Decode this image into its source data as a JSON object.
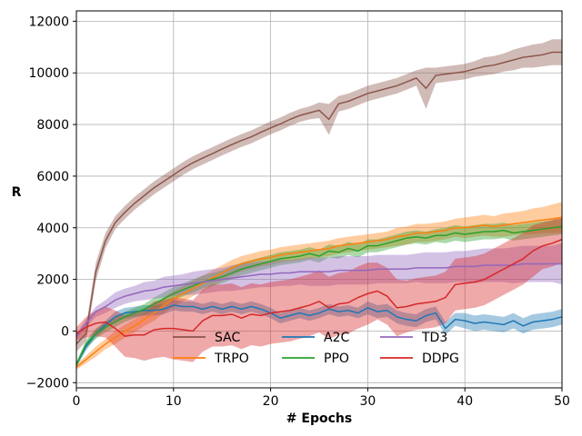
{
  "chart_data": {
    "type": "line",
    "title": "",
    "xlabel": "# Epochs",
    "ylabel": "R",
    "xlim": [
      0,
      50
    ],
    "ylim": [
      -2200,
      12400
    ],
    "xticks": [
      0,
      10,
      20,
      30,
      40,
      50
    ],
    "yticks": [
      -2000,
      0,
      2000,
      4000,
      6000,
      8000,
      10000,
      12000
    ],
    "grid": true,
    "legend_position": "lower-center",
    "band": "shaded spread around each series",
    "x": [
      0,
      1,
      2,
      3,
      4,
      5,
      6,
      7,
      8,
      9,
      10,
      11,
      12,
      13,
      14,
      15,
      16,
      17,
      18,
      19,
      20,
      21,
      22,
      23,
      24,
      25,
      26,
      27,
      28,
      29,
      30,
      31,
      32,
      33,
      34,
      35,
      36,
      37,
      38,
      39,
      40,
      41,
      42,
      43,
      44,
      45,
      46,
      47,
      48,
      49,
      50
    ],
    "series": [
      {
        "name": "SAC",
        "color": "#8c564b",
        "values": [
          -500,
          -100,
          2300,
          3500,
          4200,
          4600,
          4950,
          5250,
          5550,
          5800,
          6050,
          6300,
          6520,
          6700,
          6870,
          7050,
          7220,
          7380,
          7520,
          7700,
          7870,
          8020,
          8200,
          8350,
          8450,
          8550,
          8200,
          8800,
          8900,
          9050,
          9200,
          9300,
          9400,
          9500,
          9650,
          9800,
          9400,
          9900,
          9950,
          10000,
          10050,
          10150,
          10250,
          10300,
          10400,
          10500,
          10600,
          10650,
          10700,
          10800,
          10800
        ],
        "band": [
          300,
          300,
          350,
          300,
          250,
          250,
          250,
          250,
          250,
          250,
          250,
          250,
          250,
          250,
          250,
          250,
          250,
          250,
          250,
          250,
          250,
          250,
          250,
          250,
          250,
          300,
          600,
          300,
          300,
          300,
          300,
          300,
          300,
          300,
          300,
          300,
          800,
          300,
          300,
          300,
          300,
          300,
          350,
          350,
          350,
          400,
          400,
          450,
          450,
          500,
          500
        ]
      },
      {
        "name": "TRPO",
        "color": "#ff7f0e",
        "values": [
          -1400,
          -1100,
          -800,
          -500,
          -250,
          0,
          200,
          450,
          700,
          1000,
          1250,
          1450,
          1650,
          1850,
          2050,
          2250,
          2450,
          2600,
          2700,
          2800,
          2850,
          2950,
          3000,
          3050,
          3100,
          3150,
          3200,
          3300,
          3350,
          3400,
          3450,
          3500,
          3550,
          3650,
          3700,
          3800,
          3800,
          3850,
          3900,
          4000,
          4000,
          4050,
          4100,
          4050,
          4100,
          4150,
          4200,
          4250,
          4300,
          4350,
          4400
        ],
        "band": [
          100,
          150,
          200,
          200,
          250,
          250,
          250,
          250,
          300,
          300,
          300,
          300,
          300,
          300,
          300,
          300,
          300,
          300,
          300,
          300,
          300,
          300,
          300,
          300,
          300,
          300,
          300,
          300,
          300,
          300,
          300,
          300,
          300,
          350,
          350,
          350,
          350,
          350,
          350,
          350,
          400,
          400,
          400,
          400,
          450,
          450,
          450,
          500,
          500,
          550,
          600
        ]
      },
      {
        "name": "A2C",
        "color": "#1f77b4",
        "values": [
          -1300,
          -600,
          -100,
          250,
          550,
          700,
          750,
          800,
          800,
          850,
          1000,
          950,
          950,
          850,
          950,
          850,
          950,
          850,
          950,
          850,
          700,
          500,
          600,
          700,
          600,
          700,
          850,
          750,
          800,
          700,
          900,
          750,
          800,
          550,
          450,
          400,
          600,
          700,
          100,
          450,
          400,
          300,
          350,
          300,
          250,
          400,
          200,
          350,
          400,
          450,
          550
        ],
        "band": [
          100,
          150,
          150,
          150,
          200,
          200,
          200,
          200,
          200,
          200,
          200,
          200,
          200,
          200,
          200,
          200,
          200,
          200,
          200,
          200,
          200,
          200,
          200,
          200,
          200,
          200,
          200,
          200,
          200,
          200,
          250,
          250,
          250,
          250,
          250,
          250,
          250,
          250,
          250,
          250,
          300,
          300,
          300,
          300,
          300,
          300,
          300,
          300,
          300,
          300,
          300
        ]
      },
      {
        "name": "PPO",
        "color": "#2ca02c",
        "values": [
          -1300,
          -500,
          -100,
          150,
          350,
          550,
          700,
          850,
          1050,
          1250,
          1450,
          1600,
          1750,
          1900,
          2000,
          2100,
          2250,
          2400,
          2500,
          2600,
          2700,
          2800,
          2850,
          2900,
          3000,
          2900,
          3100,
          3050,
          3200,
          3100,
          3300,
          3300,
          3400,
          3500,
          3600,
          3650,
          3600,
          3700,
          3700,
          3800,
          3750,
          3800,
          3850,
          3850,
          3900,
          3800,
          3850,
          3900,
          3950,
          4000,
          4050
        ],
        "band": [
          100,
          150,
          200,
          200,
          200,
          200,
          200,
          200,
          250,
          250,
          250,
          250,
          250,
          250,
          250,
          250,
          250,
          250,
          250,
          250,
          250,
          250,
          250,
          250,
          250,
          250,
          250,
          250,
          250,
          250,
          250,
          250,
          250,
          250,
          250,
          250,
          250,
          250,
          300,
          300,
          300,
          300,
          300,
          300,
          300,
          300,
          300,
          300,
          300,
          300,
          300
        ]
      },
      {
        "name": "TD3",
        "color": "#9467bd",
        "values": [
          -200,
          300,
          750,
          950,
          1200,
          1350,
          1450,
          1550,
          1600,
          1700,
          1750,
          1800,
          1850,
          1900,
          1950,
          2000,
          2050,
          2100,
          2150,
          2200,
          2200,
          2250,
          2250,
          2300,
          2300,
          2300,
          2300,
          2350,
          2350,
          2350,
          2350,
          2400,
          2400,
          2400,
          2400,
          2450,
          2450,
          2450,
          2450,
          2500,
          2500,
          2500,
          2550,
          2550,
          2550,
          2550,
          2600,
          2600,
          2600,
          2600,
          2600
        ],
        "band": [
          100,
          150,
          200,
          250,
          300,
          300,
          300,
          350,
          350,
          400,
          400,
          400,
          450,
          450,
          450,
          450,
          500,
          500,
          500,
          500,
          500,
          500,
          500,
          500,
          550,
          550,
          550,
          550,
          550,
          550,
          550,
          550,
          550,
          550,
          550,
          550,
          600,
          600,
          600,
          600,
          600,
          650,
          650,
          650,
          650,
          700,
          700,
          700,
          700,
          700,
          800
        ]
      },
      {
        "name": "DDPG",
        "color": "#d62728",
        "values": [
          -100,
          150,
          300,
          350,
          100,
          -200,
          -150,
          -150,
          50,
          100,
          100,
          50,
          0,
          400,
          600,
          600,
          650,
          500,
          650,
          600,
          700,
          750,
          800,
          900,
          1000,
          1150,
          900,
          1050,
          1100,
          1300,
          1450,
          1550,
          1350,
          900,
          950,
          1050,
          1100,
          1150,
          1300,
          1800,
          1850,
          1900,
          2000,
          2200,
          2400,
          2600,
          2800,
          3100,
          3300,
          3400,
          3550
        ],
        "band": [
          250,
          400,
          500,
          600,
          700,
          800,
          900,
          1000,
          1100,
          1100,
          1200,
          1200,
          1200,
          1200,
          1200,
          1200,
          1200,
          1200,
          1200,
          1200,
          1200,
          1200,
          1200,
          1200,
          1200,
          1200,
          1200,
          1200,
          1200,
          1200,
          1200,
          1100,
          1100,
          1100,
          1000,
          1000,
          1000,
          1000,
          1000,
          1000,
          1000,
          1000,
          1000,
          1000,
          1000,
          1000,
          1000,
          1000,
          900,
          900,
          900
        ]
      }
    ],
    "legend_order": [
      "SAC",
      "TRPO",
      "A2C",
      "PPO",
      "TD3",
      "DDPG"
    ]
  }
}
